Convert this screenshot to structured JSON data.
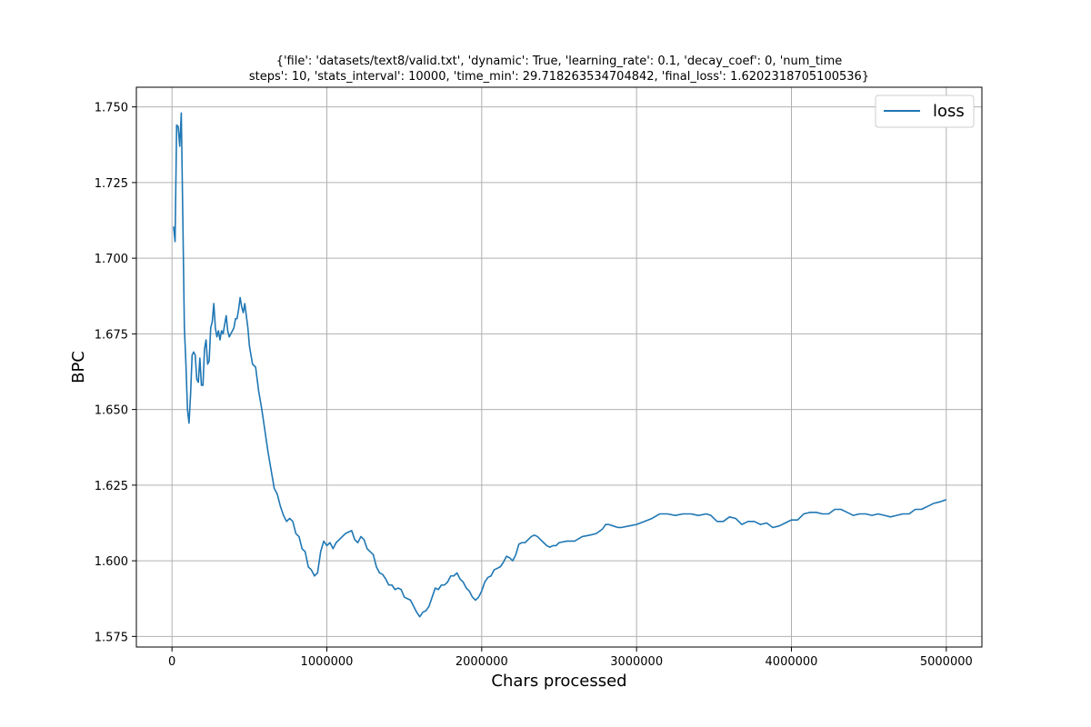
{
  "chart_data": {
    "type": "line",
    "title_lines": [
      "{'file': 'datasets/text8/valid.txt', 'dynamic': True, 'learning_rate': 0.1, 'decay_coef': 0, 'num_time",
      "steps': 10, 'stats_interval': 10000, 'time_min': 29.718263534704842, 'final_loss': 1.6202318705100536}"
    ],
    "xlabel": "Chars processed",
    "ylabel": "BPC",
    "xlim": [
      -230000,
      5230000
    ],
    "ylim": [
      1.5715,
      1.7565
    ],
    "x_ticks": [
      0,
      1000000,
      2000000,
      3000000,
      4000000,
      5000000
    ],
    "x_tick_labels": [
      "0",
      "1000000",
      "2000000",
      "3000000",
      "4000000",
      "5000000"
    ],
    "y_ticks": [
      1.575,
      1.6,
      1.625,
      1.65,
      1.675,
      1.7,
      1.725,
      1.75
    ],
    "y_tick_labels": [
      "1.575",
      "1.600",
      "1.625",
      "1.650",
      "1.675",
      "1.700",
      "1.725",
      "1.750"
    ],
    "grid": true,
    "legend_position": "top-right",
    "series": [
      {
        "name": "loss",
        "color": "#1f77b4",
        "points": [
          [
            10000,
            1.7105
          ],
          [
            20000,
            1.7055
          ],
          [
            30000,
            1.744
          ],
          [
            40000,
            1.7435
          ],
          [
            50000,
            1.737
          ],
          [
            60000,
            1.748
          ],
          [
            70000,
            1.713
          ],
          [
            80000,
            1.677
          ],
          [
            90000,
            1.665
          ],
          [
            100000,
            1.65
          ],
          [
            110000,
            1.6455
          ],
          [
            120000,
            1.655
          ],
          [
            130000,
            1.668
          ],
          [
            140000,
            1.669
          ],
          [
            150000,
            1.668
          ],
          [
            160000,
            1.66
          ],
          [
            170000,
            1.659
          ],
          [
            180000,
            1.667
          ],
          [
            190000,
            1.658
          ],
          [
            200000,
            1.658
          ],
          [
            210000,
            1.67
          ],
          [
            220000,
            1.673
          ],
          [
            230000,
            1.665
          ],
          [
            240000,
            1.666
          ],
          [
            250000,
            1.677
          ],
          [
            260000,
            1.679
          ],
          [
            270000,
            1.685
          ],
          [
            280000,
            1.677
          ],
          [
            290000,
            1.674
          ],
          [
            300000,
            1.676
          ],
          [
            310000,
            1.673
          ],
          [
            320000,
            1.676
          ],
          [
            330000,
            1.675
          ],
          [
            340000,
            1.678
          ],
          [
            350000,
            1.681
          ],
          [
            360000,
            1.676
          ],
          [
            370000,
            1.674
          ],
          [
            380000,
            1.675
          ],
          [
            390000,
            1.676
          ],
          [
            400000,
            1.677
          ],
          [
            410000,
            1.68
          ],
          [
            420000,
            1.68
          ],
          [
            430000,
            1.683
          ],
          [
            440000,
            1.687
          ],
          [
            450000,
            1.684
          ],
          [
            460000,
            1.682
          ],
          [
            470000,
            1.685
          ],
          [
            480000,
            1.681
          ],
          [
            490000,
            1.677
          ],
          [
            500000,
            1.671
          ],
          [
            520000,
            1.665
          ],
          [
            540000,
            1.664
          ],
          [
            560000,
            1.656
          ],
          [
            580000,
            1.65
          ],
          [
            600000,
            1.643
          ],
          [
            620000,
            1.636
          ],
          [
            640000,
            1.63
          ],
          [
            660000,
            1.624
          ],
          [
            680000,
            1.622
          ],
          [
            700000,
            1.618
          ],
          [
            720000,
            1.615
          ],
          [
            740000,
            1.613
          ],
          [
            760000,
            1.614
          ],
          [
            780000,
            1.613
          ],
          [
            800000,
            1.609
          ],
          [
            820000,
            1.608
          ],
          [
            840000,
            1.604
          ],
          [
            860000,
            1.603
          ],
          [
            880000,
            1.598
          ],
          [
            900000,
            1.597
          ],
          [
            920000,
            1.595
          ],
          [
            940000,
            1.596
          ],
          [
            960000,
            1.603
          ],
          [
            980000,
            1.6065
          ],
          [
            1000000,
            1.605
          ],
          [
            1020000,
            1.606
          ],
          [
            1040000,
            1.604
          ],
          [
            1060000,
            1.606
          ],
          [
            1080000,
            1.607
          ],
          [
            1100000,
            1.608
          ],
          [
            1120000,
            1.609
          ],
          [
            1140000,
            1.6095
          ],
          [
            1160000,
            1.61
          ],
          [
            1180000,
            1.607
          ],
          [
            1200000,
            1.606
          ],
          [
            1220000,
            1.608
          ],
          [
            1240000,
            1.607
          ],
          [
            1260000,
            1.604
          ],
          [
            1280000,
            1.603
          ],
          [
            1300000,
            1.602
          ],
          [
            1320000,
            1.598
          ],
          [
            1340000,
            1.596
          ],
          [
            1360000,
            1.5955
          ],
          [
            1380000,
            1.594
          ],
          [
            1400000,
            1.592
          ],
          [
            1420000,
            1.592
          ],
          [
            1440000,
            1.5905
          ],
          [
            1460000,
            1.591
          ],
          [
            1480000,
            1.5905
          ],
          [
            1500000,
            1.588
          ],
          [
            1520000,
            1.5875
          ],
          [
            1540000,
            1.587
          ],
          [
            1560000,
            1.585
          ],
          [
            1580000,
            1.583
          ],
          [
            1600000,
            1.5815
          ],
          [
            1620000,
            1.583
          ],
          [
            1640000,
            1.5835
          ],
          [
            1660000,
            1.585
          ],
          [
            1680000,
            1.588
          ],
          [
            1700000,
            1.591
          ],
          [
            1720000,
            1.5905
          ],
          [
            1740000,
            1.592
          ],
          [
            1760000,
            1.592
          ],
          [
            1780000,
            1.593
          ],
          [
            1800000,
            1.595
          ],
          [
            1820000,
            1.595
          ],
          [
            1840000,
            1.596
          ],
          [
            1860000,
            1.594
          ],
          [
            1880000,
            1.593
          ],
          [
            1900000,
            1.591
          ],
          [
            1920000,
            1.59
          ],
          [
            1940000,
            1.588
          ],
          [
            1960000,
            1.587
          ],
          [
            1980000,
            1.588
          ],
          [
            2000000,
            1.59
          ],
          [
            2020000,
            1.593
          ],
          [
            2040000,
            1.5945
          ],
          [
            2060000,
            1.595
          ],
          [
            2080000,
            1.597
          ],
          [
            2100000,
            1.5975
          ],
          [
            2120000,
            1.598
          ],
          [
            2140000,
            1.5995
          ],
          [
            2160000,
            1.6015
          ],
          [
            2180000,
            1.601
          ],
          [
            2200000,
            1.6
          ],
          [
            2220000,
            1.602
          ],
          [
            2240000,
            1.6055
          ],
          [
            2260000,
            1.606
          ],
          [
            2280000,
            1.606
          ],
          [
            2300000,
            1.607
          ],
          [
            2320000,
            1.608
          ],
          [
            2340000,
            1.6085
          ],
          [
            2360000,
            1.608
          ],
          [
            2380000,
            1.607
          ],
          [
            2400000,
            1.606
          ],
          [
            2420000,
            1.605
          ],
          [
            2440000,
            1.6045
          ],
          [
            2460000,
            1.605
          ],
          [
            2480000,
            1.605
          ],
          [
            2500000,
            1.606
          ],
          [
            2550000,
            1.6065
          ],
          [
            2600000,
            1.6065
          ],
          [
            2650000,
            1.608
          ],
          [
            2700000,
            1.6085
          ],
          [
            2740000,
            1.609
          ],
          [
            2780000,
            1.6105
          ],
          [
            2800000,
            1.612
          ],
          [
            2820000,
            1.612
          ],
          [
            2850000,
            1.6115
          ],
          [
            2880000,
            1.611
          ],
          [
            2900000,
            1.611
          ],
          [
            2950000,
            1.6115
          ],
          [
            3000000,
            1.612
          ],
          [
            3050000,
            1.613
          ],
          [
            3100000,
            1.614
          ],
          [
            3150000,
            1.6155
          ],
          [
            3200000,
            1.6155
          ],
          [
            3250000,
            1.615
          ],
          [
            3300000,
            1.6155
          ],
          [
            3350000,
            1.6155
          ],
          [
            3400000,
            1.615
          ],
          [
            3450000,
            1.6155
          ],
          [
            3480000,
            1.615
          ],
          [
            3520000,
            1.613
          ],
          [
            3560000,
            1.613
          ],
          [
            3600000,
            1.6145
          ],
          [
            3640000,
            1.614
          ],
          [
            3680000,
            1.612
          ],
          [
            3720000,
            1.613
          ],
          [
            3760000,
            1.613
          ],
          [
            3800000,
            1.612
          ],
          [
            3840000,
            1.6125
          ],
          [
            3880000,
            1.611
          ],
          [
            3920000,
            1.6115
          ],
          [
            3960000,
            1.6125
          ],
          [
            4000000,
            1.6135
          ],
          [
            4040000,
            1.6135
          ],
          [
            4080000,
            1.6155
          ],
          [
            4120000,
            1.616
          ],
          [
            4160000,
            1.616
          ],
          [
            4200000,
            1.6155
          ],
          [
            4240000,
            1.6155
          ],
          [
            4280000,
            1.617
          ],
          [
            4320000,
            1.617
          ],
          [
            4360000,
            1.616
          ],
          [
            4400000,
            1.615
          ],
          [
            4440000,
            1.6155
          ],
          [
            4480000,
            1.6155
          ],
          [
            4520000,
            1.615
          ],
          [
            4560000,
            1.6155
          ],
          [
            4600000,
            1.615
          ],
          [
            4640000,
            1.6145
          ],
          [
            4680000,
            1.615
          ],
          [
            4720000,
            1.6155
          ],
          [
            4760000,
            1.6155
          ],
          [
            4800000,
            1.617
          ],
          [
            4840000,
            1.617
          ],
          [
            4880000,
            1.618
          ],
          [
            4920000,
            1.619
          ],
          [
            4960000,
            1.6195
          ],
          [
            5000000,
            1.6202
          ]
        ]
      }
    ]
  },
  "legend": {
    "items": [
      {
        "label": "loss"
      }
    ]
  }
}
